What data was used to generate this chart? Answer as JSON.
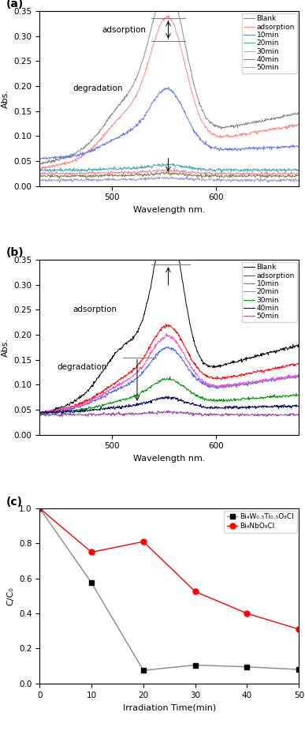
{
  "panel_a": {
    "xlabel": "Wavelength nm.",
    "ylabel": "Abs.",
    "xlim": [
      430,
      680
    ],
    "ylim": [
      0.0,
      0.35
    ],
    "yticks": [
      0.0,
      0.05,
      0.1,
      0.15,
      0.2,
      0.25,
      0.3,
      0.35
    ],
    "xticks": [
      500,
      600
    ],
    "legend_labels": [
      "Blank",
      "adsorption",
      "10min",
      "20min",
      "30min",
      "40min",
      "50min"
    ],
    "legend_colors": [
      "#888888",
      "#FF8888",
      "#6677EE",
      "#44AAAA",
      "#EE88BB",
      "#888844",
      "#9999DD"
    ],
    "spectra_params": [
      {
        "peak_amp": 0.285,
        "base": 0.045,
        "base_slope": 0.0004,
        "sigma": 17
      },
      {
        "peak_amp": 0.245,
        "base": 0.035,
        "base_slope": 0.00035,
        "sigma": 17
      },
      {
        "peak_amp": 0.12,
        "base": 0.055,
        "base_slope": 0.0001,
        "sigma": 17
      },
      {
        "peak_amp": 0.01,
        "base": 0.032,
        "base_slope": 0.0,
        "sigma": 17
      },
      {
        "peak_amp": 0.006,
        "base": 0.025,
        "base_slope": 0.0,
        "sigma": 17
      },
      {
        "peak_amp": 0.005,
        "base": 0.02,
        "base_slope": 0.0,
        "sigma": 17
      },
      {
        "peak_amp": 0.004,
        "base": 0.012,
        "base_slope": 0.0,
        "sigma": 17
      }
    ]
  },
  "panel_b": {
    "xlabel": "Wavelength nm.",
    "ylabel": "Abs.",
    "xlim": [
      430,
      680
    ],
    "ylim": [
      0.0,
      0.35
    ],
    "yticks": [
      0.0,
      0.05,
      0.1,
      0.15,
      0.2,
      0.25,
      0.3,
      0.35
    ],
    "xticks": [
      500,
      600
    ],
    "legend_labels": [
      "Blank",
      "adsorption",
      "10min",
      "20min",
      "30min",
      "40min",
      "50min"
    ],
    "legend_colors": [
      "#000000",
      "#FF0000",
      "#4466FF",
      "#FF44CC",
      "#009900",
      "#000066",
      "#9944AA"
    ],
    "spectra_params": [
      {
        "peak_amp": 0.3,
        "base": 0.042,
        "base_slope": 0.00055,
        "sigma": 14
      },
      {
        "peak_amp": 0.12,
        "base": 0.042,
        "base_slope": 0.0004,
        "sigma": 17
      },
      {
        "peak_amp": 0.09,
        "base": 0.042,
        "base_slope": 0.0003,
        "sigma": 17
      },
      {
        "peak_amp": 0.11,
        "base": 0.044,
        "base_slope": 0.0003,
        "sigma": 17
      },
      {
        "peak_amp": 0.048,
        "base": 0.042,
        "base_slope": 0.00015,
        "sigma": 17
      },
      {
        "peak_amp": 0.022,
        "base": 0.045,
        "base_slope": 5e-05,
        "sigma": 17
      },
      {
        "peak_amp": 0.005,
        "base": 0.04,
        "base_slope": 0.0,
        "sigma": 17
      }
    ]
  },
  "panel_c": {
    "xlabel": "Irradiation Time(min)",
    "ylabel": "C/C₀",
    "xlim": [
      0,
      50
    ],
    "ylim": [
      0.0,
      1.0
    ],
    "yticks": [
      0.0,
      0.2,
      0.4,
      0.6,
      0.8,
      1.0
    ],
    "xticks": [
      0,
      10,
      20,
      30,
      40,
      50
    ],
    "series1_label": "Bi₄W₀.₅Ti₀.₅O₈Cl",
    "series1_color": "#888888",
    "series1_marker": "s",
    "series1_mfc": "#000000",
    "series1_x": [
      0,
      10,
      20,
      30,
      40,
      50
    ],
    "series1_y": [
      1.0,
      0.575,
      0.075,
      0.105,
      0.095,
      0.08
    ],
    "series2_label": "Bi₄NbO₈Cl",
    "series2_color": "#FF0000",
    "series2_marker": "o",
    "series2_x": [
      0,
      10,
      20,
      30,
      40,
      50
    ],
    "series2_y": [
      1.0,
      0.75,
      0.81,
      0.525,
      0.4,
      0.31
    ]
  },
  "background_color": "#ffffff",
  "peak_wl": 554,
  "shoulder_wl": 514,
  "shoulder_ratio": 0.3,
  "shoulder_sigma": 22
}
